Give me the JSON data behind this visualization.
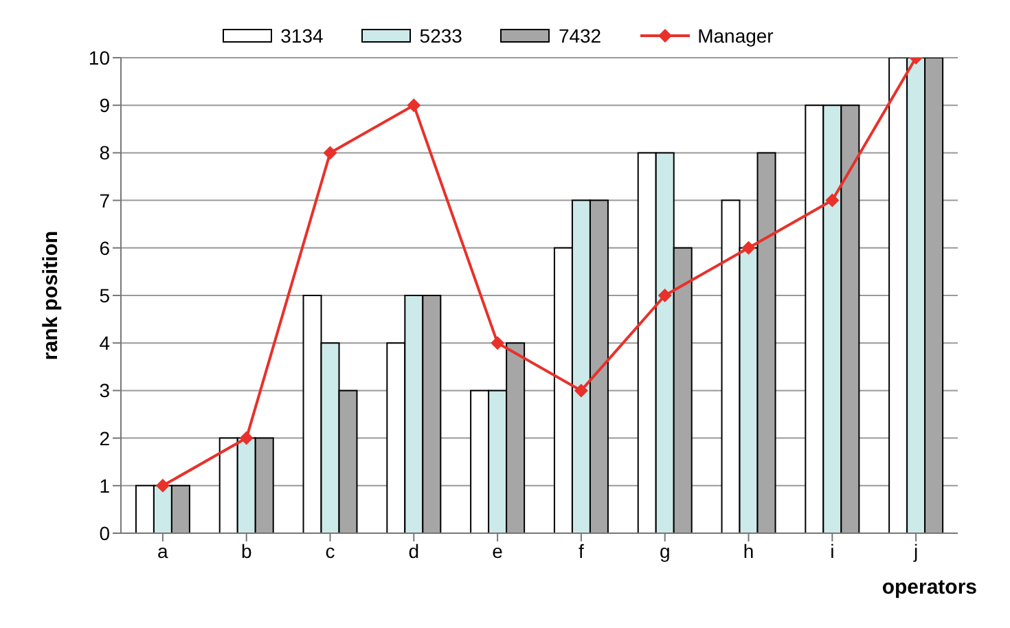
{
  "chart_data": {
    "type": "bar",
    "xlabel": "operators",
    "ylabel": "rank position",
    "categories": [
      "a",
      "b",
      "c",
      "d",
      "e",
      "f",
      "g",
      "h",
      "i",
      "j"
    ],
    "series": [
      {
        "name": "3134",
        "color": "#ffffff",
        "values": [
          1,
          2,
          5,
          4,
          3,
          6,
          8,
          7,
          9,
          10
        ]
      },
      {
        "name": "5233",
        "color": "#cdeaea",
        "values": [
          1,
          2,
          4,
          5,
          3,
          7,
          8,
          6,
          9,
          10
        ]
      },
      {
        "name": "7432",
        "color": "#a6a6a6",
        "values": [
          1,
          2,
          3,
          5,
          4,
          7,
          6,
          8,
          9,
          10
        ]
      },
      {
        "name": "Manager",
        "type": "line",
        "color": "#e8312a",
        "marker": "diamond",
        "values": [
          1,
          2,
          8,
          9,
          4,
          3,
          5,
          6,
          7,
          10
        ]
      }
    ],
    "ylim": [
      0,
      10
    ],
    "yticks": [
      0,
      1,
      2,
      3,
      4,
      5,
      6,
      7,
      8,
      9,
      10
    ],
    "grid": "y",
    "legend": "top"
  }
}
